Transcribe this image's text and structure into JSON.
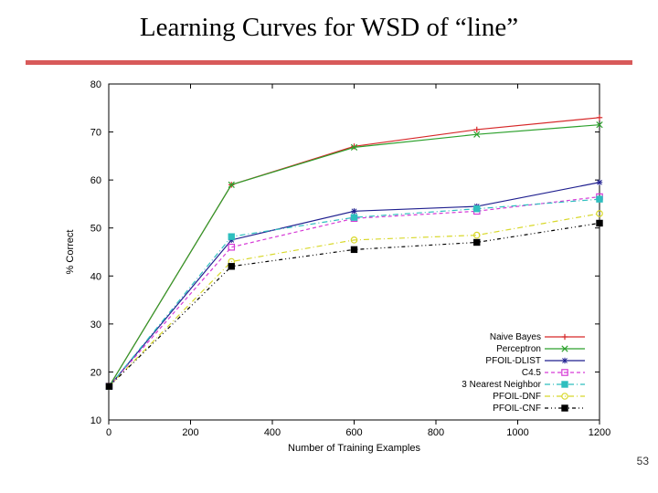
{
  "title": "Learning Curves for WSD of “line”",
  "page_number": "53",
  "chart": {
    "type": "line",
    "xlabel": "Number of Training Examples",
    "ylabel": "% Correct",
    "label_fontsize": 11,
    "xlim": [
      0,
      1200
    ],
    "ylim": [
      10,
      80
    ],
    "xtick_step": 200,
    "ytick_step": 10,
    "background_color": "#ffffff",
    "axis_color": "#000000",
    "grid_on": false,
    "legend_position": "lower-right",
    "series": [
      {
        "name": "Naive Bayes",
        "color": "#d62728",
        "dash": "",
        "marker": "plus",
        "x": [
          1,
          300,
          600,
          900,
          1200
        ],
        "y": [
          17,
          59,
          67,
          70.5,
          73
        ]
      },
      {
        "name": "Perceptron",
        "color": "#2ca02c",
        "dash": "",
        "marker": "x",
        "x": [
          1,
          300,
          600,
          900,
          1200
        ],
        "y": [
          17,
          59,
          66.8,
          69.5,
          71.5
        ]
      },
      {
        "name": "PFOIL-DLIST",
        "color": "#1f1f8f",
        "dash": "",
        "marker": "star",
        "x": [
          1,
          300,
          600,
          900,
          1200
        ],
        "y": [
          17,
          47.5,
          53.5,
          54.5,
          59.5
        ]
      },
      {
        "name": "C4.5",
        "color": "#d63ad6",
        "dash": "4 3",
        "marker": "square-open",
        "x": [
          1,
          300,
          600,
          900,
          1200
        ],
        "y": [
          17,
          46,
          52,
          53.5,
          56.5
        ]
      },
      {
        "name": "3 Nearest Neighbor",
        "color": "#2fbfbf",
        "dash": "6 3 1 3",
        "marker": "square",
        "x": [
          1,
          300,
          600,
          900,
          1200
        ],
        "y": [
          17,
          48.2,
          52.2,
          54,
          56
        ]
      },
      {
        "name": "PFOIL-DNF",
        "color": "#d8d82a",
        "dash": "6 3 1 3",
        "marker": "circle-open",
        "x": [
          1,
          300,
          600,
          900,
          1200
        ],
        "y": [
          17,
          43,
          47.5,
          48.5,
          53
        ]
      },
      {
        "name": "PFOIL-CNF",
        "color": "#000000",
        "dash": "4 3 1 3 1 3",
        "marker": "square",
        "x": [
          1,
          300,
          600,
          900,
          1200
        ],
        "y": [
          17,
          42,
          45.5,
          47,
          51
        ]
      }
    ]
  }
}
